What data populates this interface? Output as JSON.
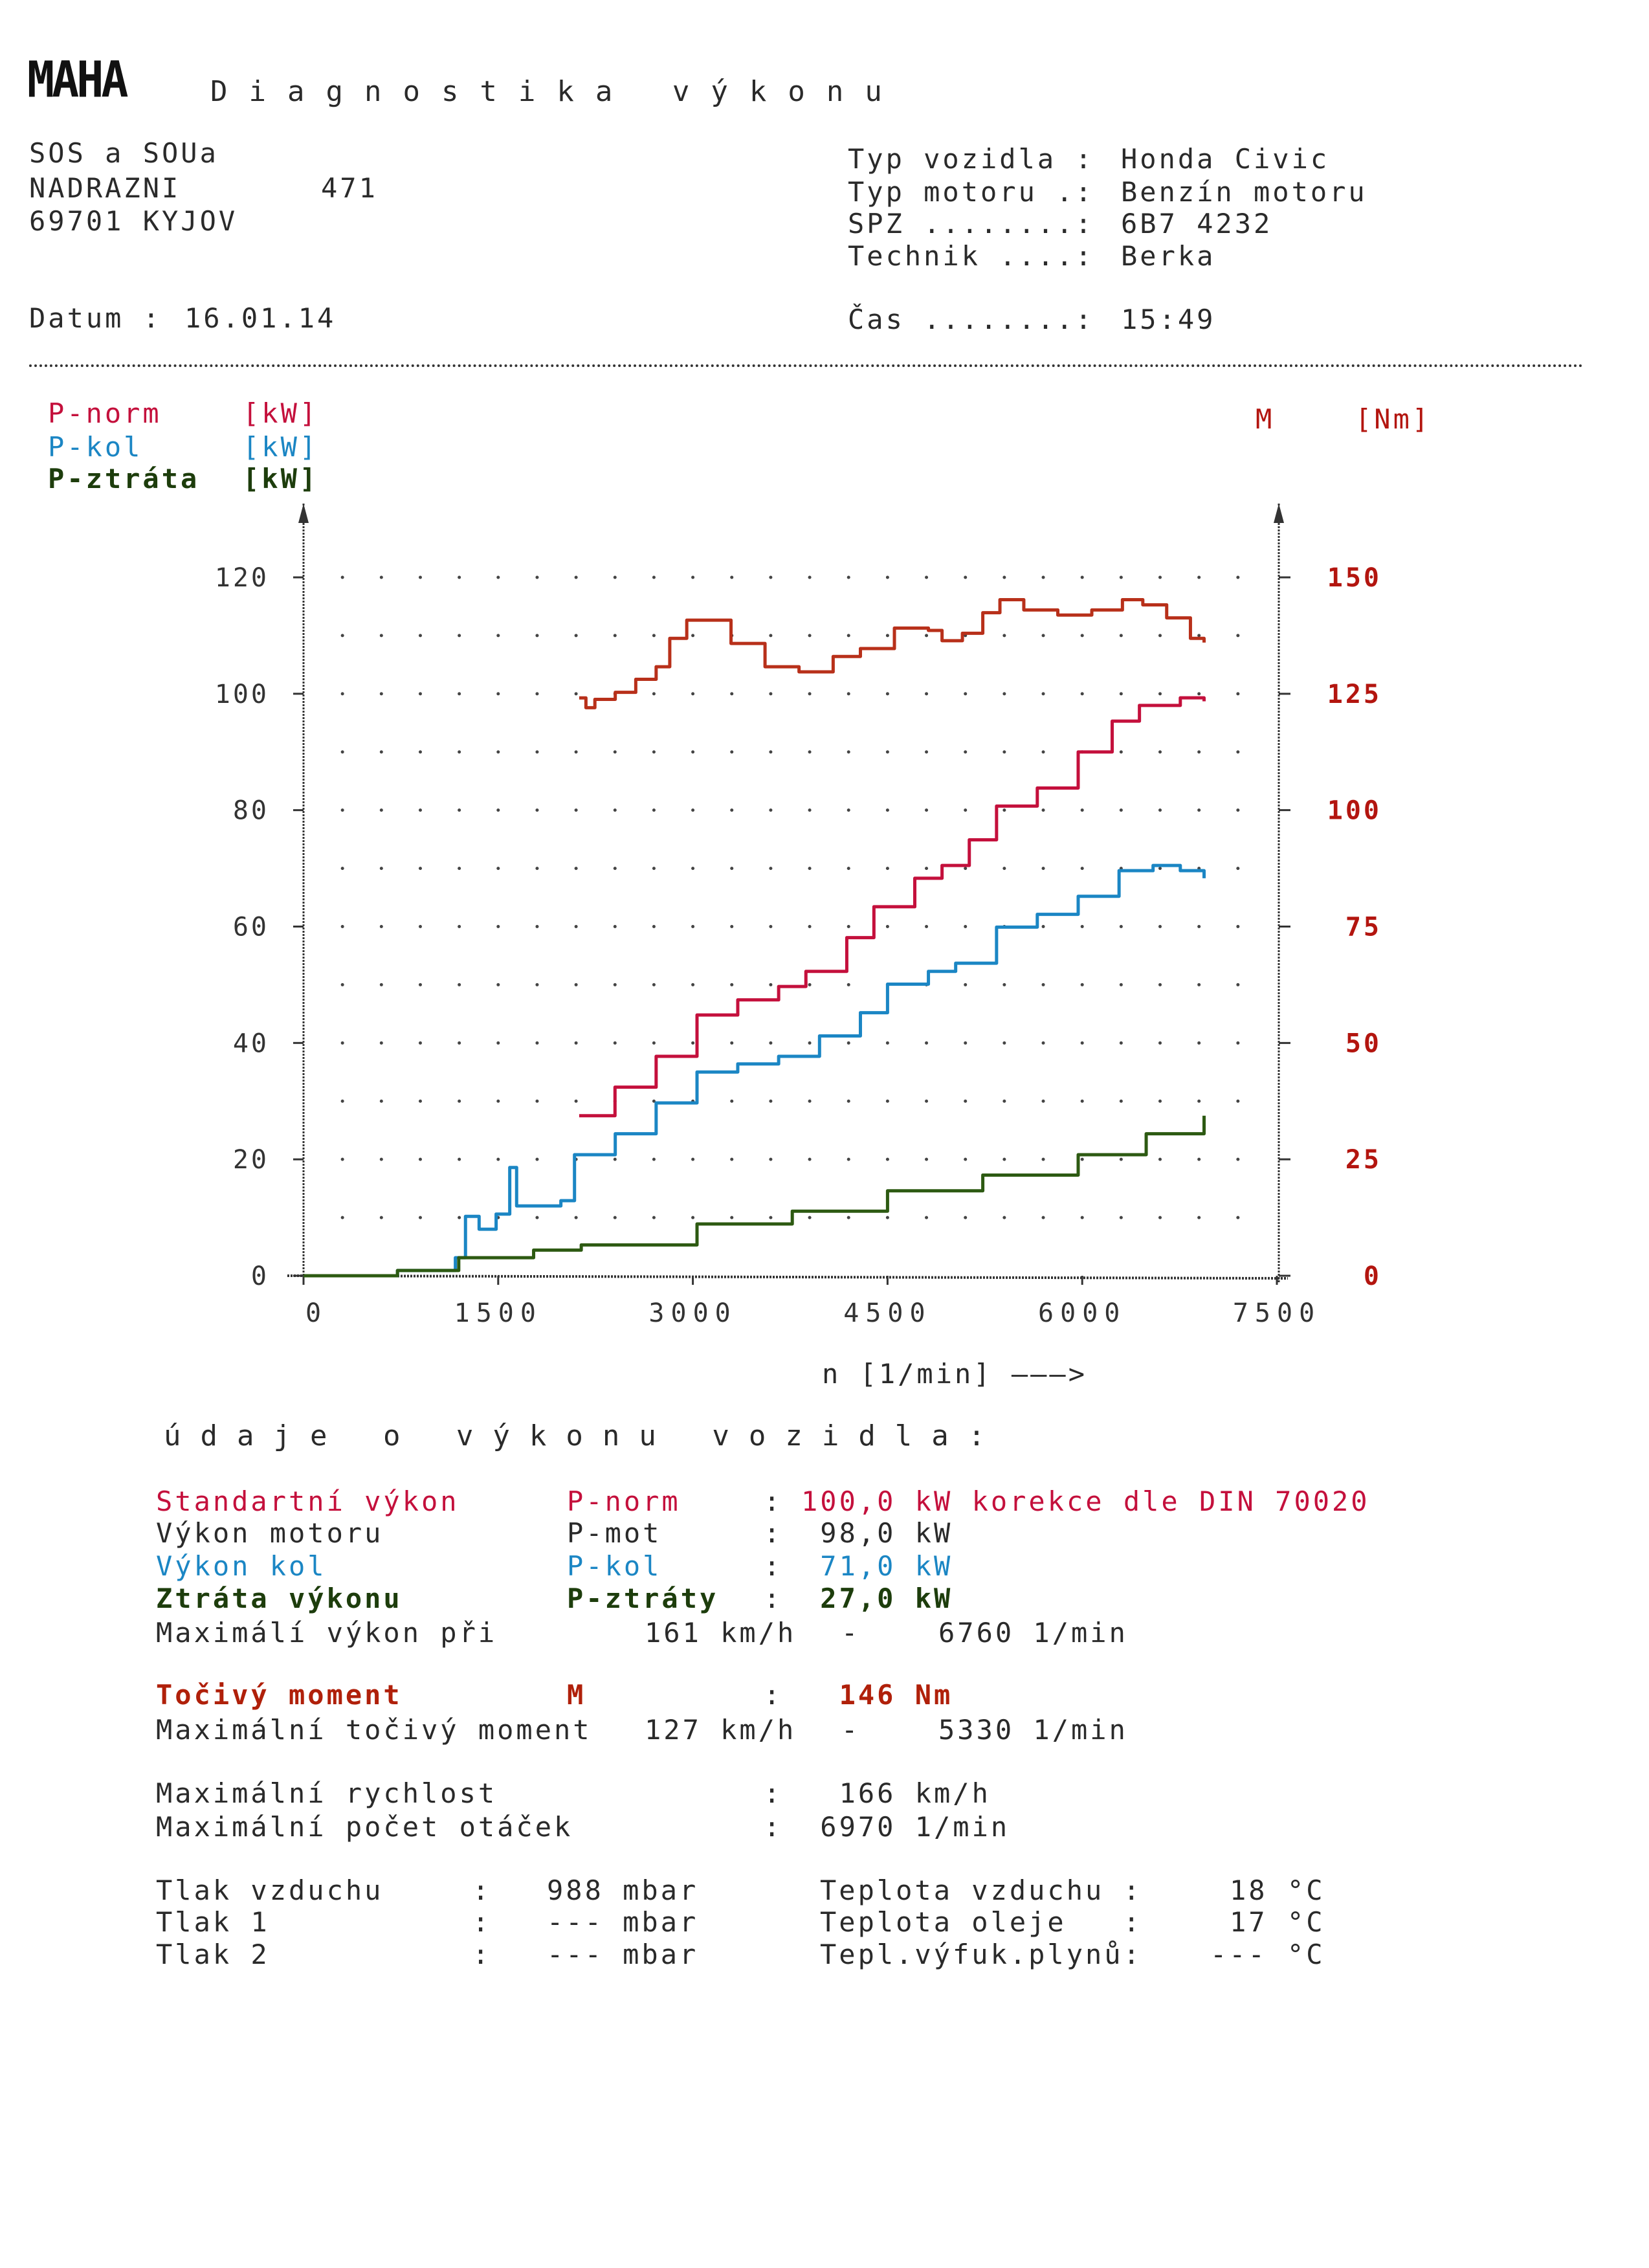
{
  "header": {
    "logo": "MAHA",
    "title": "Diagnostika výkonu",
    "address": [
      "SOS a SOUa",
      "NADRAZNI",
      "69701 KYJOV"
    ],
    "house_number": "471",
    "date_label": "Datum :",
    "date": "16.01.14",
    "vehicle": [
      {
        "label": "Typ vozidla :",
        "value": "Honda Civic"
      },
      {
        "label": "Typ motoru .:",
        "value": "Benzín motoru"
      },
      {
        "label": "SPZ ........:",
        "value": "6B7 4232"
      },
      {
        "label": "Technik ....:",
        "value": "Berka"
      }
    ],
    "time_label": "Čas ........:",
    "time": "15:49"
  },
  "legend": {
    "p_norm": {
      "name": "P-norm",
      "unit": "[kW]"
    },
    "p_kol": {
      "name": "P-kol",
      "unit": "[kW]"
    },
    "p_ztrata": {
      "name": "P-ztráta",
      "unit": "[kW]"
    },
    "m": {
      "name": "M",
      "unit": "[Nm]"
    }
  },
  "colors": {
    "p_norm": "#c4103c",
    "p_kol": "#1b86c4",
    "p_ztrata": "#2d5a12",
    "m": "#b8301a",
    "right_axis": "#b3150f"
  },
  "chart_data": {
    "type": "line",
    "xlabel": "n [1/min] ———>",
    "xlim": [
      0,
      7500
    ],
    "ylim_left": [
      0,
      120
    ],
    "ylim_right": [
      0,
      150
    ],
    "x_ticks": [
      "0",
      "1500",
      "3000",
      "4500",
      "6000",
      "7500"
    ],
    "y_ticks_left": [
      "0",
      "20",
      "40",
      "60",
      "80",
      "100",
      "120"
    ],
    "y_ticks_right": [
      "0",
      "25",
      "50",
      "75",
      "100",
      "125",
      "150"
    ],
    "grid": "dotted",
    "series": [
      {
        "name": "P-norm",
        "axis": "left",
        "x": [
          2124,
          2400,
          2717,
          3032,
          3346,
          3661,
          3871,
          4186,
          4395,
          4710,
          4920,
          5130,
          5340,
          5654,
          5969,
          6231,
          6441,
          6756,
          6939
        ],
        "y": [
          27.5,
          32.4,
          37.7,
          44.8,
          47.4,
          49.7,
          52.3,
          58.1,
          63.4,
          68.3,
          70.5,
          74.9,
          80.7,
          83.8,
          90.0,
          95.3,
          98.0,
          99.3,
          98.7
        ]
      },
      {
        "name": "P-kol",
        "axis": "left",
        "x": [
          0,
          724,
          1170,
          1248,
          1353,
          1484,
          1589,
          1642,
          1983,
          2088,
          2402,
          2717,
          3032,
          3346,
          3661,
          3976,
          4291,
          4500,
          4815,
          5025,
          5340,
          5654,
          5969,
          6284,
          6546,
          6756,
          6939
        ],
        "y": [
          0,
          0.9,
          3.1,
          10.2,
          8.0,
          10.6,
          18.6,
          12.0,
          12.9,
          20.8,
          24.4,
          29.7,
          35.0,
          36.4,
          37.7,
          41.2,
          45.2,
          50.1,
          52.3,
          53.7,
          59.9,
          62.1,
          65.2,
          69.6,
          70.5,
          69.6,
          68.3
        ]
      },
      {
        "name": "P-ztráta",
        "axis": "left",
        "x": [
          0,
          724,
          1196,
          1773,
          2140,
          3032,
          3766,
          4500,
          5234,
          5969,
          6493,
          6939
        ],
        "y": [
          0,
          0.9,
          3.1,
          4.4,
          5.3,
          8.9,
          11.1,
          14.6,
          17.3,
          20.8,
          24.4,
          27.5
        ]
      },
      {
        "name": "M",
        "axis": "right",
        "x": [
          2124,
          2176,
          2245,
          2402,
          2560,
          2717,
          2822,
          2953,
          3084,
          3294,
          3556,
          3818,
          4081,
          4291,
          4553,
          4815,
          4920,
          5077,
          5234,
          5366,
          5550,
          5812,
          6074,
          6310,
          6467,
          6651,
          6834,
          6939
        ],
        "y": [
          124.1,
          122.0,
          123.8,
          125.3,
          128.1,
          130.8,
          136.9,
          140.8,
          140.8,
          135.8,
          130.8,
          129.7,
          133.0,
          134.7,
          139.1,
          138.6,
          136.4,
          138.0,
          142.4,
          145.2,
          143.0,
          141.9,
          143.0,
          145.2,
          144.1,
          141.3,
          136.9,
          136.0
        ]
      }
    ]
  },
  "results": {
    "heading": "údaje o výkonu vozidla:",
    "rows": [
      {
        "label": "Standartní výkon",
        "sym": "P-norm",
        "colon": ":",
        "value": "100,0 kW korekce dle DIN 70020"
      },
      {
        "label": "Výkon motoru",
        "sym": "P-mot",
        "colon": ":",
        "value": " 98,0 kW"
      },
      {
        "label": "Výkon kol",
        "sym": "P-kol",
        "colon": ":",
        "value": " 71,0 kW"
      },
      {
        "label": "Ztráta výkonu",
        "sym": "P-ztráty",
        "colon": ":",
        "value": " 27,0 kW"
      },
      {
        "label": "Maximálí výkon při",
        "speed": "161 km/h",
        "dash": "-",
        "rpm": "6760 1/min"
      },
      {
        "label": "Točivý moment",
        "sym": "M",
        "colon": ":",
        "value": "  146 Nm"
      },
      {
        "label": "Maximální točivý moment",
        "speed": "127 km/h",
        "dash": "-",
        "rpm": "5330 1/min"
      },
      {
        "label": "Maximální rychlost",
        "colon": ":",
        "value": "  166 km/h"
      },
      {
        "label": "Maximální počet otáček",
        "colon": ":",
        "value": " 6970 1/min"
      }
    ],
    "ambient": [
      {
        "label": "Tlak vzduchu",
        "colon": ":",
        "value": "988 mbar",
        "label2": "Teplota vzduchu :",
        "value2": "18",
        "unit2": "°C"
      },
      {
        "label": "Tlak 1",
        "colon": ":",
        "value": "--- mbar",
        "label2": "Teplota oleje   :",
        "value2": "17",
        "unit2": "°C"
      },
      {
        "label": "Tlak 2",
        "colon": ":",
        "value": "--- mbar",
        "label2": "Tepl.výfuk.plynů:",
        "value2": "---",
        "unit2": "°C"
      }
    ]
  }
}
